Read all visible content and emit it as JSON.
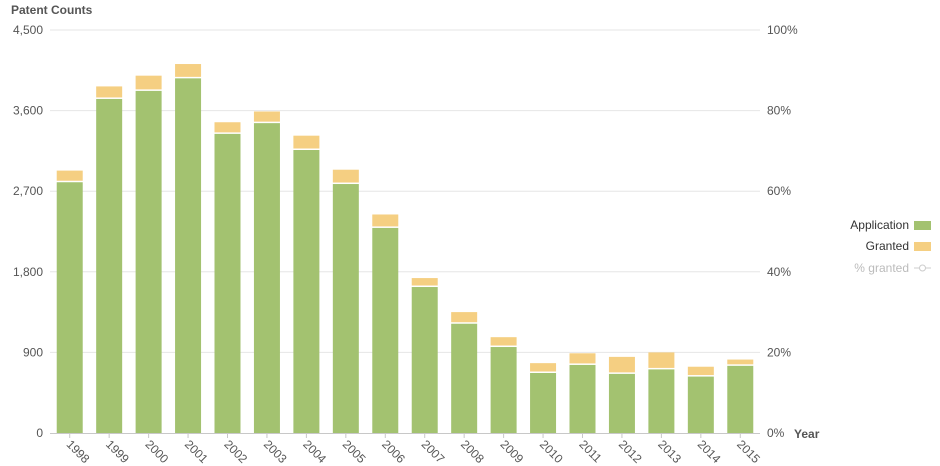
{
  "chart_data": {
    "type": "bar",
    "stacked": true,
    "title": "",
    "ylabel": "Patent Counts",
    "xlabel": "Year",
    "categories": [
      "1998",
      "1999",
      "2000",
      "2001",
      "2002",
      "2003",
      "2004",
      "2005",
      "2006",
      "2007",
      "2008",
      "2009",
      "2010",
      "2011",
      "2012",
      "2013",
      "2014",
      "2015"
    ],
    "series": [
      {
        "name": "Application",
        "color": "#a3c270",
        "values": [
          2800,
          3730,
          3820,
          3960,
          3340,
          3460,
          3160,
          2780,
          2290,
          1630,
          1220,
          960,
          670,
          760,
          660,
          710,
          630,
          750
        ]
      },
      {
        "name": "Granted",
        "color": "#f5cf82",
        "values": [
          130,
          140,
          170,
          160,
          130,
          130,
          160,
          160,
          150,
          100,
          130,
          110,
          110,
          130,
          190,
          190,
          110,
          70
        ]
      }
    ],
    "ylim": [
      0,
      4500
    ],
    "y_ticks": [
      "0",
      "900",
      "1,800",
      "2,700",
      "3,600",
      "4,500"
    ],
    "y_tick_values": [
      0,
      900,
      1800,
      2700,
      3600,
      4500
    ],
    "y2_ticks": [
      "0%",
      "20%",
      "40%",
      "60%",
      "80%",
      "100%"
    ],
    "y2_tick_values": [
      0,
      20,
      40,
      60,
      80,
      100
    ],
    "y2lim": [
      0,
      100
    ],
    "line_series": {
      "name": "% granted",
      "color": "#cccccc",
      "visible": false
    },
    "legend_position": "right",
    "grid": true
  }
}
